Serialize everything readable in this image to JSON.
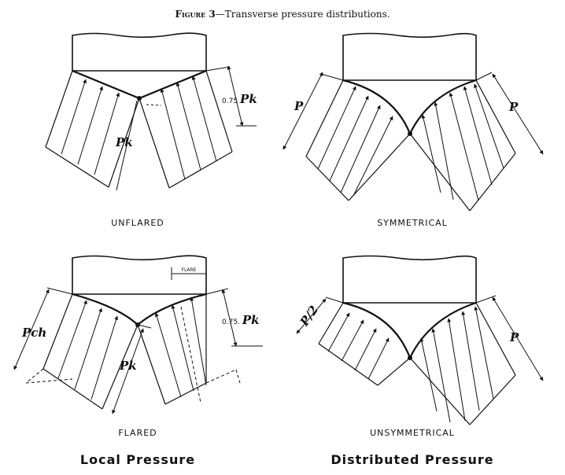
{
  "figure": {
    "caption_label": "Figure 3",
    "caption_text": "—Transverse pressure distributions."
  },
  "panels": {
    "unflared": {
      "label": "UNFLARED",
      "factor": "0.75",
      "symbol": "Pk",
      "pk": "Pk"
    },
    "symmetrical": {
      "label": "SYMMETRICAL",
      "p_left": "P",
      "p_right": "P"
    },
    "flared": {
      "label": "FLARED",
      "pch": "Pch",
      "pk": "Pk",
      "factor": "0.75.",
      "symbol": "Pk",
      "flare": "FLARE"
    },
    "unsymmetrical": {
      "label": "UNSYMMETRICAL",
      "p_half": "P/2",
      "p_right": "P"
    }
  },
  "footer": {
    "left": "Local Pressure",
    "right": "Distributed Pressure"
  }
}
